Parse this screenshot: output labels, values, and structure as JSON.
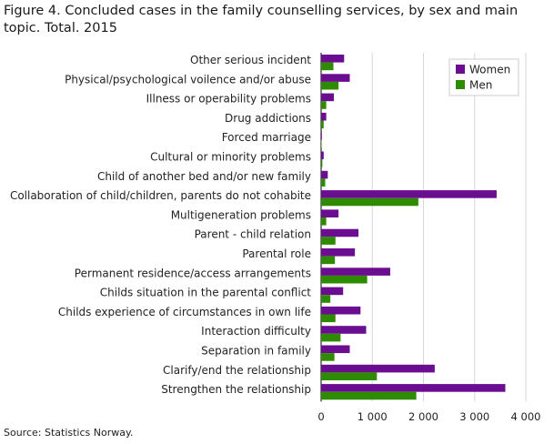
{
  "title": "Figure 4. Concluded cases  in the family counselling services, by sex and main topic. Total. 2015",
  "source": "Source: Statistics Norway.",
  "chart_data": {
    "type": "bar",
    "orientation": "horizontal",
    "categories": [
      "Other serious incident",
      "Physical/psychological voilence and/or abuse",
      "Illness or operability problems",
      "Drug addictions",
      "Forced marriage",
      "Cultural or minority problems",
      "Child of another bed and/or new family",
      "Collaboration of child/children, parents do not cohabite",
      "Multigeneration problems",
      "Parent - child relation",
      "Parental role",
      "Permanent residence/access arrangements",
      "Childs situation in the parental conflict",
      "Childs experience of circumstances in own life",
      "Interaction difficulty",
      "Separation in family",
      "Clarify/end the relationship",
      "Strengthen the relationship"
    ],
    "series": [
      {
        "name": "Women",
        "color": "#6a0d91",
        "values": [
          450,
          560,
          250,
          100,
          15,
          50,
          130,
          3430,
          340,
          730,
          660,
          1350,
          430,
          770,
          880,
          560,
          2220,
          3600
        ]
      },
      {
        "name": "Men",
        "color": "#2e8b00",
        "values": [
          240,
          340,
          100,
          50,
          8,
          25,
          80,
          1900,
          100,
          280,
          270,
          900,
          180,
          280,
          380,
          260,
          1090,
          1860
        ]
      }
    ],
    "xticks": [
      "0",
      "1 000",
      "2 000",
      "3 000",
      "4 000"
    ],
    "xlim": [
      0,
      4000
    ],
    "grid": true,
    "legend_position": "top-right"
  }
}
